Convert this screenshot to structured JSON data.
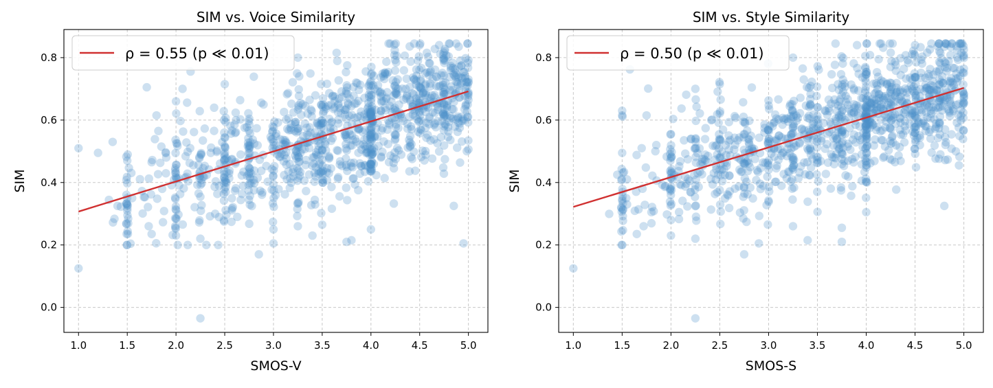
{
  "chart_data": [
    {
      "type": "scatter",
      "title": "SIM vs. Voice Similarity",
      "xlabel": "SMOS-V",
      "ylabel": "SIM",
      "xlim": [
        0.85,
        5.2
      ],
      "ylim": [
        -0.08,
        0.89
      ],
      "xticks": [
        "1.0",
        "1.5",
        "2.0",
        "2.5",
        "3.0",
        "3.5",
        "4.0",
        "4.5",
        "5.0"
      ],
      "yticks": [
        "0.0",
        "0.2",
        "0.4",
        "0.6",
        "0.8"
      ],
      "legend": {
        "label": "ρ = 0.55 (p ≪ 0.01)",
        "color": "#d03030",
        "loc": "upper left"
      },
      "fit_line": {
        "x": [
          1.0,
          5.0
        ],
        "y": [
          0.307,
          0.692
        ]
      },
      "point_color": "#4a90c8",
      "seed": 11,
      "n_points": 1150,
      "points": [
        [
          1.0,
          0.51
        ],
        [
          1.0,
          0.125
        ],
        [
          1.2,
          0.495
        ],
        [
          1.35,
          0.53
        ],
        [
          1.4,
          0.325
        ],
        [
          1.5,
          0.47
        ],
        [
          1.55,
          0.35
        ],
        [
          1.7,
          0.705
        ],
        [
          1.72,
          0.26
        ],
        [
          1.75,
          0.235
        ],
        [
          1.75,
          0.465
        ],
        [
          1.8,
          0.615
        ],
        [
          1.85,
          0.515
        ],
        [
          1.9,
          0.48
        ],
        [
          2.0,
          0.66
        ],
        [
          2.0,
          0.23
        ],
        [
          2.25,
          -0.035
        ],
        [
          2.25,
          0.22
        ],
        [
          2.5,
          0.715
        ],
        [
          2.85,
          0.17
        ],
        [
          3.0,
          0.205
        ],
        [
          3.0,
          0.25
        ],
        [
          3.25,
          0.8
        ],
        [
          3.25,
          0.26
        ],
        [
          3.4,
          0.23
        ],
        [
          3.5,
          0.265
        ],
        [
          3.75,
          0.21
        ],
        [
          3.8,
          0.215
        ],
        [
          4.0,
          0.25
        ],
        [
          4.85,
          0.325
        ],
        [
          4.95,
          0.205
        ],
        [
          4.5,
          0.84
        ],
        [
          4.8,
          0.845
        ],
        [
          4.7,
          0.84
        ],
        [
          4.9,
          0.835
        ]
      ]
    },
    {
      "type": "scatter",
      "title": "SIM vs. Style Similarity",
      "xlabel": "SMOS-S",
      "ylabel": "SIM",
      "xlim": [
        0.85,
        5.2
      ],
      "ylim": [
        -0.08,
        0.89
      ],
      "xticks": [
        "1.0",
        "1.5",
        "2.0",
        "2.5",
        "3.0",
        "3.5",
        "4.0",
        "4.5",
        "5.0"
      ],
      "yticks": [
        "0.0",
        "0.2",
        "0.4",
        "0.6",
        "0.8"
      ],
      "legend": {
        "label": "ρ = 0.50 (p ≪ 0.01)",
        "color": "#d03030",
        "loc": "upper left"
      },
      "fit_line": {
        "x": [
          1.0,
          5.0
        ],
        "y": [
          0.322,
          0.703
        ]
      },
      "point_color": "#4a90c8",
      "seed": 29,
      "n_points": 1150,
      "points": [
        [
          1.0,
          0.125
        ],
        [
          1.45,
          0.425
        ],
        [
          1.5,
          0.63
        ],
        [
          1.5,
          0.615
        ],
        [
          1.5,
          0.495
        ],
        [
          1.55,
          0.33
        ],
        [
          1.65,
          0.235
        ],
        [
          1.7,
          0.51
        ],
        [
          1.72,
          0.26
        ],
        [
          1.75,
          0.615
        ],
        [
          1.8,
          0.305
        ],
        [
          1.85,
          0.52
        ],
        [
          2.0,
          0.23
        ],
        [
          2.0,
          0.28
        ],
        [
          2.25,
          -0.035
        ],
        [
          2.25,
          0.22
        ],
        [
          2.25,
          0.7
        ],
        [
          2.5,
          0.715
        ],
        [
          2.75,
          0.17
        ],
        [
          2.9,
          0.205
        ],
        [
          3.25,
          0.26
        ],
        [
          3.25,
          0.8
        ],
        [
          3.4,
          0.215
        ],
        [
          3.75,
          0.21
        ],
        [
          3.75,
          0.255
        ],
        [
          4.0,
          0.305
        ],
        [
          4.8,
          0.325
        ],
        [
          4.95,
          0.455
        ],
        [
          4.5,
          0.84
        ],
        [
          4.8,
          0.835
        ]
      ]
    }
  ]
}
